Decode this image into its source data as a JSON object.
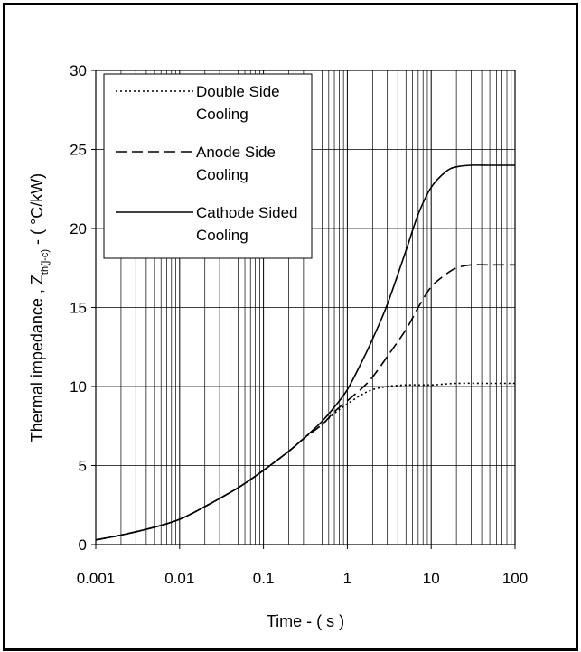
{
  "chart_data": {
    "type": "line",
    "title": "",
    "xlabel": "Time - ( s )",
    "ylabel_main": "Thermal impedance , Z",
    "ylabel_sub": "th(j-c)",
    "ylabel_unit": " - ( °C/kW)",
    "xscale": "log",
    "xlim": [
      0.001,
      100
    ],
    "ylim": [
      0,
      30
    ],
    "x_ticks": [
      0.001,
      0.01,
      0.1,
      1,
      10,
      100
    ],
    "x_tick_labels": [
      "0.001",
      "0.01",
      "0.1",
      "1",
      "10",
      "100"
    ],
    "y_ticks": [
      0,
      5,
      10,
      15,
      20,
      25,
      30
    ],
    "y_tick_labels": [
      "0",
      "5",
      "10",
      "15",
      "20",
      "25",
      "30"
    ],
    "grid": "on (log minor vertical lines, major horizontal lines)",
    "legend_position": "top-left",
    "series": [
      {
        "name": "Double Side Cooling",
        "legend_lines": [
          "Double Side",
          "Cooling"
        ],
        "style": "dotted",
        "x": [
          0.001,
          0.002,
          0.005,
          0.01,
          0.02,
          0.05,
          0.1,
          0.2,
          0.3,
          0.5,
          0.7,
          1,
          1.5,
          2,
          3,
          5,
          10,
          20,
          50,
          100
        ],
        "y": [
          0.3,
          0.6,
          1.1,
          1.6,
          2.4,
          3.6,
          4.7,
          5.9,
          6.7,
          7.6,
          8.3,
          8.9,
          9.5,
          9.8,
          10.0,
          10.1,
          10.1,
          10.2,
          10.2,
          10.2
        ]
      },
      {
        "name": "Anode Side Cooling",
        "legend_lines": [
          "Anode Side",
          "Cooling"
        ],
        "style": "dashed",
        "x": [
          0.001,
          0.002,
          0.005,
          0.01,
          0.02,
          0.05,
          0.1,
          0.2,
          0.3,
          0.5,
          0.7,
          1,
          1.5,
          2,
          3,
          5,
          7,
          10,
          15,
          20,
          30,
          50,
          100
        ],
        "y": [
          0.3,
          0.6,
          1.1,
          1.6,
          2.4,
          3.6,
          4.7,
          5.9,
          6.7,
          7.6,
          8.4,
          9.1,
          9.9,
          10.6,
          11.9,
          13.6,
          15.0,
          16.3,
          17.1,
          17.5,
          17.7,
          17.7,
          17.7
        ]
      },
      {
        "name": "Cathode Sided Cooling",
        "legend_lines": [
          "Cathode Sided",
          "Cooling"
        ],
        "style": "solid",
        "x": [
          0.001,
          0.002,
          0.005,
          0.01,
          0.02,
          0.05,
          0.1,
          0.2,
          0.3,
          0.5,
          0.7,
          1,
          1.5,
          2,
          3,
          5,
          7,
          10,
          15,
          20,
          30,
          50,
          100
        ],
        "y": [
          0.3,
          0.6,
          1.1,
          1.6,
          2.4,
          3.6,
          4.7,
          5.9,
          6.7,
          7.8,
          8.7,
          9.8,
          11.6,
          13.0,
          15.2,
          18.6,
          20.9,
          22.6,
          23.6,
          23.9,
          24.0,
          24.0,
          24.0
        ]
      }
    ]
  }
}
